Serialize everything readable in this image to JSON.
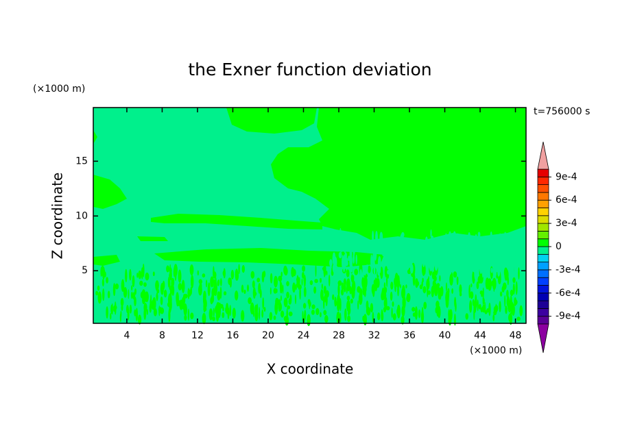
{
  "chart_data": {
    "type": "contour",
    "title": "the Exner function deviation",
    "xlabel": "X coordinate",
    "ylabel": "Z coordinate",
    "xlabel_unit": "(×1000 m)",
    "ylabel_unit": "(×1000 m)",
    "annotation": "t=756000 s",
    "xlim": [
      0.2,
      49.2
    ],
    "ylim": [
      0.2,
      19.9
    ],
    "xticks": [
      4,
      8,
      12,
      16,
      20,
      24,
      28,
      32,
      36,
      40,
      44,
      48
    ],
    "yticks": [
      5,
      10,
      15
    ],
    "colorbar": {
      "clim": [
        -0.001,
        0.001
      ],
      "colors": [
        "#8c00a0",
        "#5a0096",
        "#3c00a0",
        "#1e0096",
        "#0000b4",
        "#0014dc",
        "#0040ff",
        "#0070ff",
        "#00a0ff",
        "#00d2f0",
        "#00f08c",
        "#00ff00",
        "#64f000",
        "#a0e600",
        "#dcdc00",
        "#ffd200",
        "#ffa000",
        "#ff7800",
        "#ff5000",
        "#ff2800",
        "#e60000",
        "#f0a0a0"
      ],
      "ticks": [
        {
          "value": 0.0009,
          "label": "9e-4"
        },
        {
          "value": 0.0006,
          "label": "6e-4"
        },
        {
          "value": 0.0003,
          "label": "3e-4"
        },
        0,
        {
          "value": -0.0003,
          "label": "-3e-4"
        },
        {
          "value": -0.0006,
          "label": "-6e-4"
        },
        {
          "value": -0.0009,
          "label": "-9e-4"
        }
      ]
    }
  }
}
